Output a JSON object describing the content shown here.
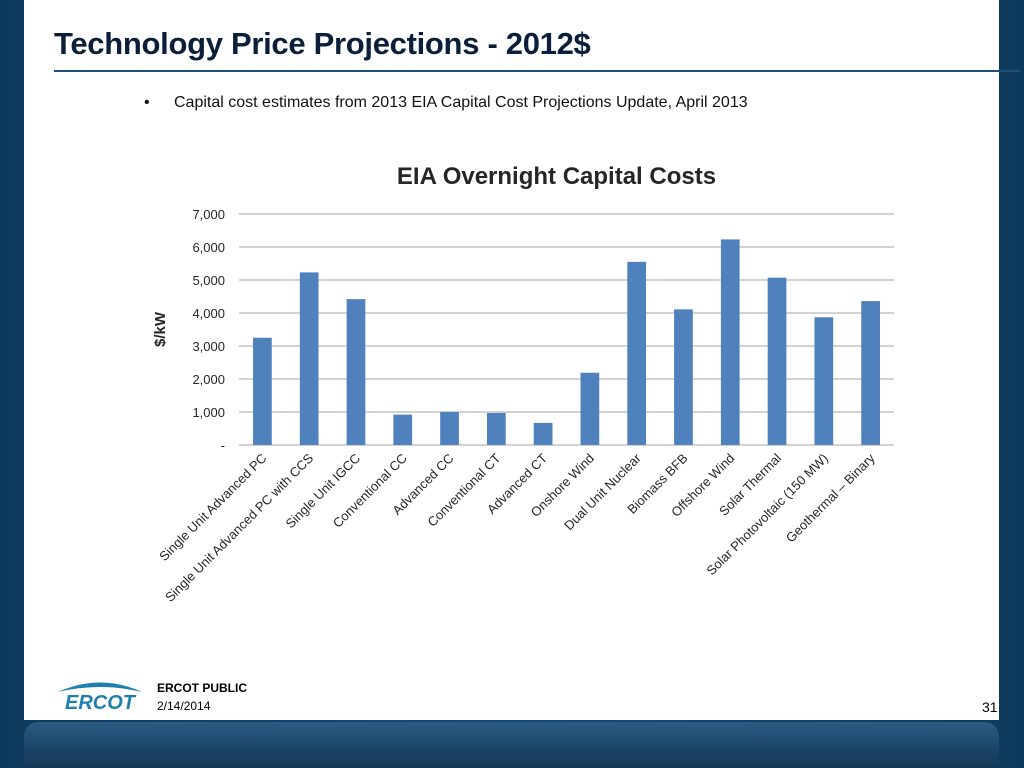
{
  "slide": {
    "title": "Technology Price Projections - 2012$",
    "bullet": "Capital cost estimates from 2013  EIA Capital Cost Projections Update, April 2013",
    "footer": {
      "classification": "ERCOT PUBLIC",
      "date": "2/14/2014",
      "page": "31",
      "logo_text": "ERCOT"
    }
  },
  "colors": {
    "bar": "#4f81bd",
    "title_rule": "#1d4f78",
    "frame": "#0d3a5c"
  },
  "chart_data": {
    "type": "bar",
    "title": "EIA Overnight Capital Costs",
    "xlabel": "",
    "ylabel": "$/kW",
    "ylim": [
      0,
      7000
    ],
    "yticks": [
      0,
      1000,
      2000,
      3000,
      4000,
      5000,
      6000,
      7000
    ],
    "ytick_labels": [
      "-",
      "1,000",
      "2,000",
      "3,000",
      "4,000",
      "5,000",
      "6,000",
      "7,000"
    ],
    "grid": true,
    "legend": "none",
    "categories": [
      "Single Unit Advanced PC",
      "Single Unit Advanced PC with CCS",
      "Single Unit IGCC",
      "Conventional CC",
      "Advanced CC",
      "Conventional CT",
      "Advanced CT",
      "Onshore Wind",
      "Dual Unit Nuclear",
      "Biomass BFB",
      "Offshore Wind",
      "Solar Thermal",
      "Solar Photovoltaic (150 MW)",
      "Geothermal – Binary"
    ],
    "values": [
      3250,
      5230,
      4420,
      920,
      1000,
      970,
      670,
      2190,
      5550,
      4110,
      6230,
      5070,
      3870,
      4360
    ]
  }
}
